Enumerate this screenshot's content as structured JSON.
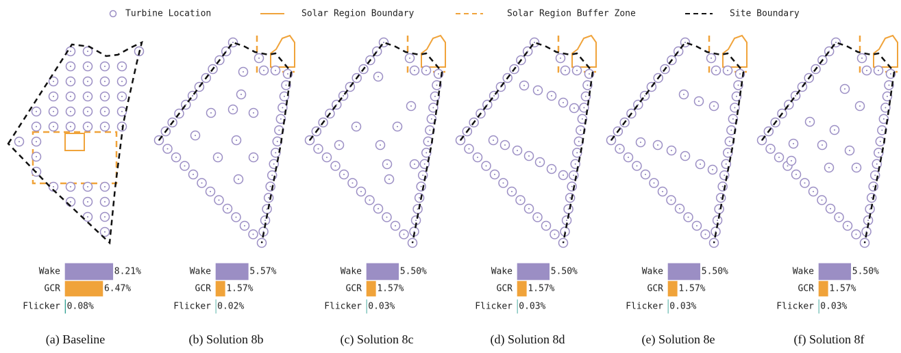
{
  "legend": [
    "Turbine Location",
    "Solar Region Boundary",
    "Solar Region Buffer Zone",
    "Site Boundary"
  ],
  "chart_data": [
    {
      "type": "barh",
      "caption": "(a) Baseline",
      "categories": [
        "Wake",
        "GCR",
        "Flicker"
      ],
      "values": [
        8.21,
        6.47,
        0.08
      ],
      "value_labels": [
        "8.21%",
        "6.47%",
        "0.08%"
      ],
      "colors": [
        "#9b8ec4",
        "#f0a33a",
        "#2a9d8f"
      ]
    },
    {
      "type": "barh",
      "caption": "(b) Solution 8b",
      "categories": [
        "Wake",
        "GCR",
        "Flicker"
      ],
      "values": [
        5.57,
        1.57,
        0.02
      ],
      "value_labels": [
        "5.57%",
        "1.57%",
        "0.02%"
      ],
      "colors": [
        "#9b8ec4",
        "#f0a33a",
        "#2a9d8f"
      ]
    },
    {
      "type": "barh",
      "caption": "(c) Solution 8c",
      "categories": [
        "Wake",
        "GCR",
        "Flicker"
      ],
      "values": [
        5.5,
        1.57,
        0.03
      ],
      "value_labels": [
        "5.50%",
        "1.57%",
        "0.03%"
      ],
      "colors": [
        "#9b8ec4",
        "#f0a33a",
        "#2a9d8f"
      ]
    },
    {
      "type": "barh",
      "caption": "(d) Solution 8d",
      "categories": [
        "Wake",
        "GCR",
        "Flicker"
      ],
      "values": [
        5.5,
        1.57,
        0.03
      ],
      "value_labels": [
        "5.50%",
        "1.57%",
        "0.03%"
      ],
      "colors": [
        "#9b8ec4",
        "#f0a33a",
        "#2a9d8f"
      ]
    },
    {
      "type": "barh",
      "caption": "(e) Solution 8e",
      "categories": [
        "Wake",
        "GCR",
        "Flicker"
      ],
      "values": [
        5.5,
        1.57,
        0.03
      ],
      "value_labels": [
        "5.50%",
        "1.57%",
        "0.03%"
      ],
      "colors": [
        "#9b8ec4",
        "#f0a33a",
        "#2a9d8f"
      ]
    },
    {
      "type": "barh",
      "caption": "(f) Solution 8f",
      "categories": [
        "Wake",
        "GCR",
        "Flicker"
      ],
      "values": [
        5.5,
        1.57,
        0.03
      ],
      "value_labels": [
        "5.50%",
        "1.57%",
        "0.03%"
      ],
      "colors": [
        "#9b8ec4",
        "#f0a33a",
        "#2a9d8f"
      ]
    }
  ]
}
